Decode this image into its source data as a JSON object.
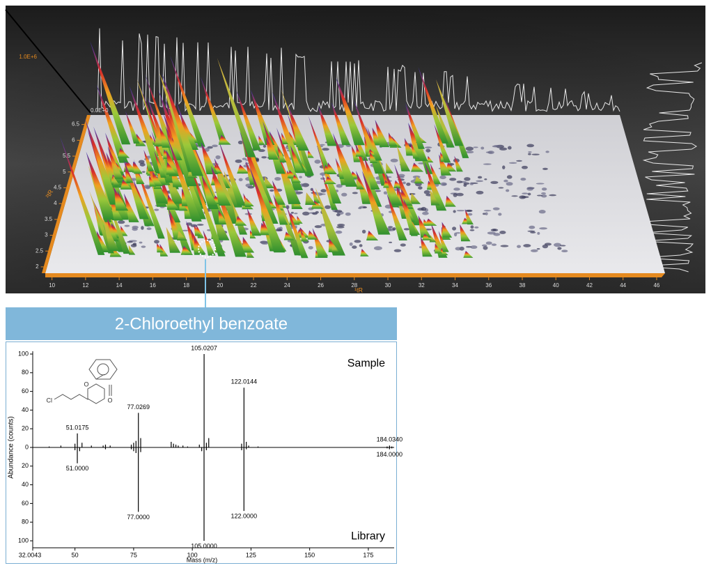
{
  "chart_data": [
    {
      "type": "surface3d",
      "x_label": "¹tR",
      "y_label": "²tR",
      "xlim": [
        9.6,
        46.5
      ],
      "xticks": [
        10,
        12,
        14,
        16,
        18,
        20,
        22,
        24,
        26,
        28,
        30,
        32,
        34,
        36,
        38,
        40,
        42,
        44,
        46
      ],
      "ylim": [
        1.8,
        6.8
      ],
      "yticks": [
        2,
        2.5,
        3,
        3.5,
        4,
        4.5,
        5,
        5.5,
        6,
        6.5
      ],
      "zlim": [
        0,
        1000000
      ],
      "zticks": [
        {
          "value": 0,
          "label": "0.0E+0"
        },
        {
          "value": 1000000,
          "label": "1.0E+6"
        }
      ],
      "axis_color": "#e58a1f"
    },
    {
      "type": "mirror-stem",
      "title": "2-Chloroethyl benzoate",
      "x_label": "Mass (m/z)",
      "y_label": "Abundance (counts)",
      "structure_labels": [
        "Cl",
        "O",
        "O"
      ],
      "xlim": [
        32.0043,
        186
      ],
      "xticks": [
        32.0043,
        50,
        75,
        100,
        125,
        150,
        175
      ],
      "ylim": [
        0,
        100
      ],
      "yticks": [
        0,
        20,
        40,
        60,
        80,
        100
      ],
      "series": [
        {
          "name": "Sample",
          "color": "#000000",
          "mirrored": false,
          "x": [
            51.0175,
            77.0269,
            105.0207,
            122.0144,
            184.034
          ],
          "values": [
            15,
            37,
            100,
            64,
            2
          ],
          "x_labels": [
            "51.0175",
            "77.0269",
            "105.0207",
            "122.0144",
            "184.0340"
          ]
        },
        {
          "name": "Library",
          "color": "#000000",
          "mirrored": true,
          "x": [
            51,
            77,
            105,
            122,
            184
          ],
          "values": [
            17,
            69,
            100,
            68,
            2
          ],
          "x_labels": [
            "51.0000",
            "77.0000",
            "105.0000",
            "122.0000",
            "184.0000"
          ]
        },
        {
          "color": "#000000",
          "mirrored": false,
          "x": [
            39,
            44,
            50,
            53,
            57,
            62,
            63,
            65,
            74,
            75,
            76,
            78,
            91,
            92,
            93,
            94,
            96,
            98,
            103,
            106,
            107,
            121,
            123,
            124,
            128,
            183,
            185
          ],
          "values": [
            1,
            2,
            4,
            5,
            2,
            2,
            3,
            2,
            3,
            5,
            7,
            10,
            6,
            4,
            3,
            2,
            2,
            1,
            3,
            5,
            10,
            4,
            6,
            2,
            1,
            1,
            1
          ]
        },
        {
          "color": "#000000",
          "mirrored": true,
          "x": [
            50,
            52,
            63,
            74,
            75,
            76,
            78,
            104,
            106,
            121,
            123,
            183,
            185
          ],
          "values": [
            3,
            4,
            2,
            2,
            4,
            6,
            5,
            4,
            3,
            3,
            2,
            1,
            1
          ]
        }
      ]
    }
  ]
}
